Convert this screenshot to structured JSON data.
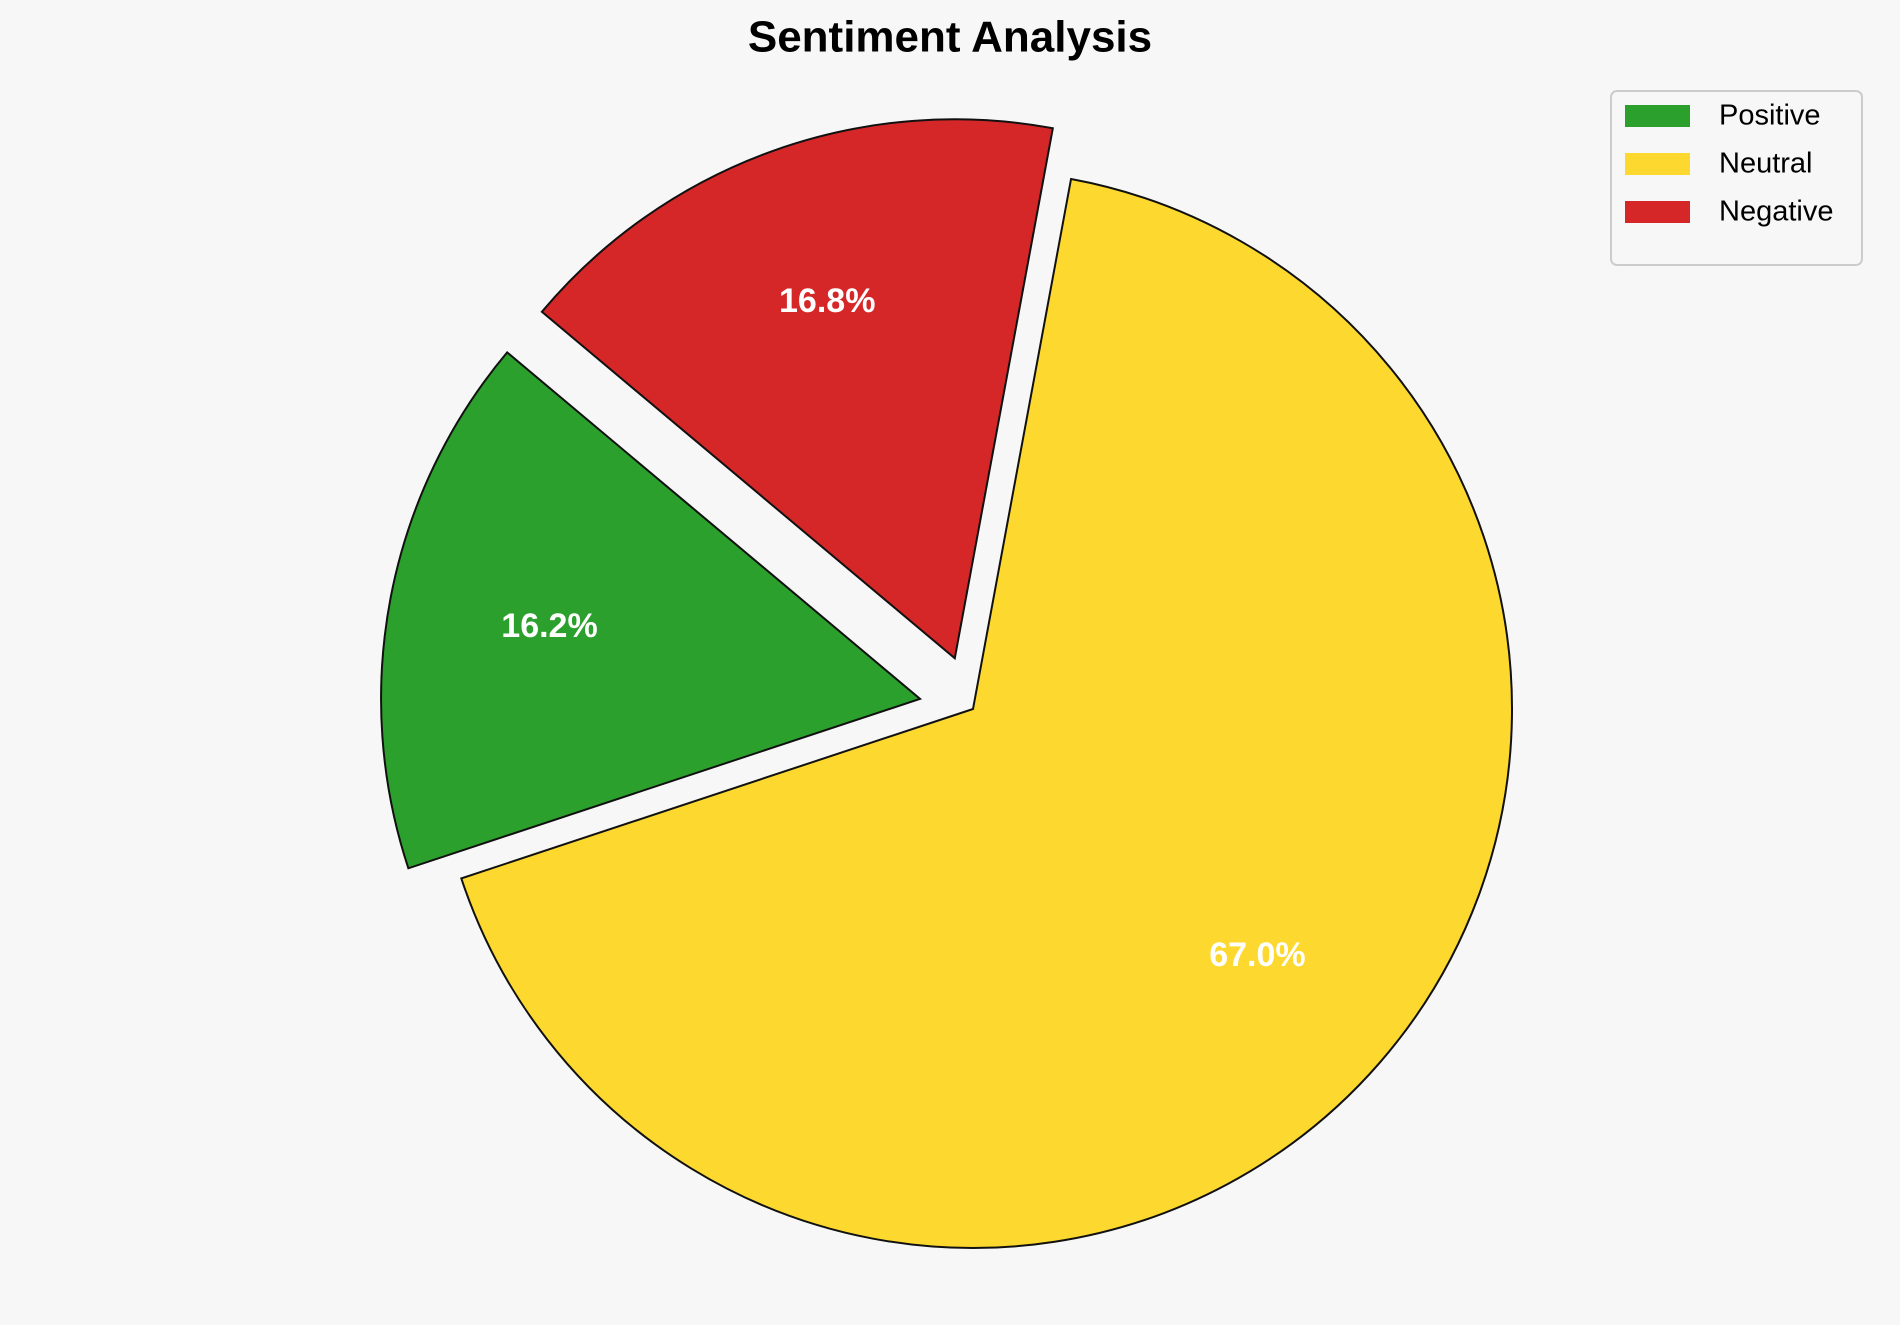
{
  "chart_data": {
    "type": "pie",
    "title": "Sentiment Analysis",
    "categories": [
      "Positive",
      "Neutral",
      "Negative"
    ],
    "values": [
      16.2,
      67.0,
      16.8
    ],
    "value_labels": [
      "16.2%",
      "67.0%",
      "16.8%"
    ],
    "colors": [
      "#2ca02c",
      "#fdd930",
      "#d62728"
    ],
    "explode": [
      0.1,
      0,
      0.1
    ],
    "start_angle": 140,
    "legend": "upper right"
  }
}
